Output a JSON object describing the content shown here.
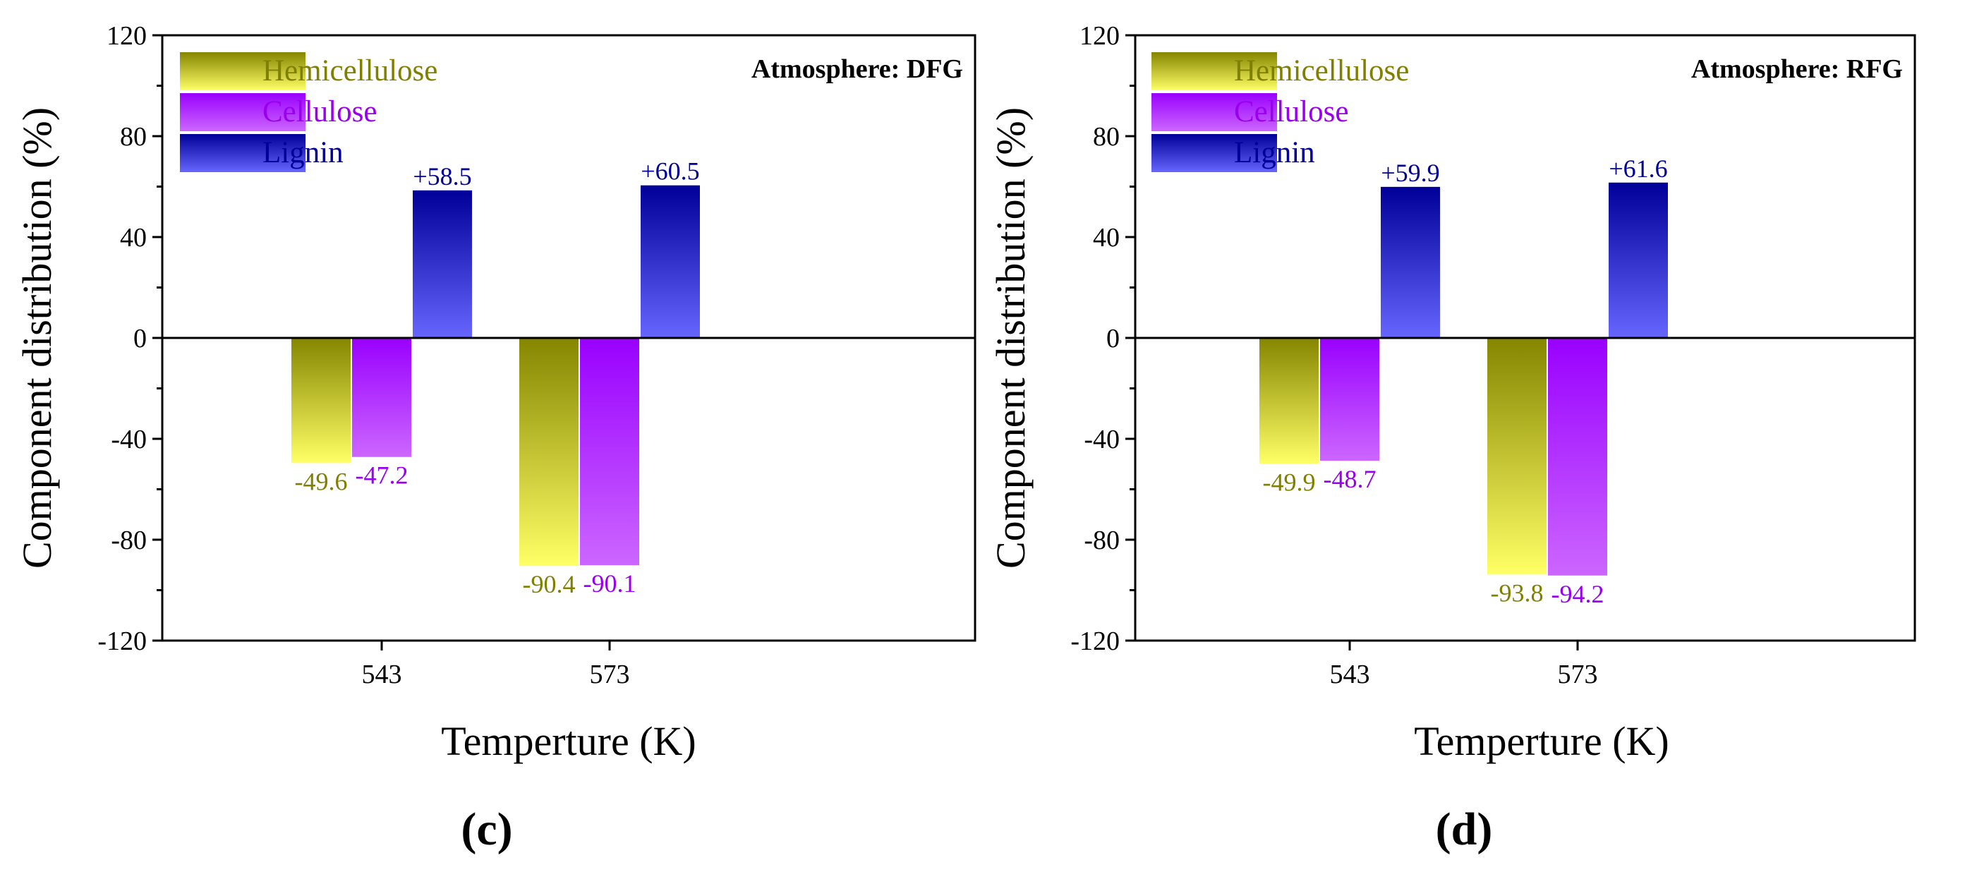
{
  "chart_data": [
    {
      "type": "bar",
      "panel_label": "(c)",
      "title": "Atmosphere: DFG",
      "xlabel": "Temperture (K)",
      "ylabel": "Component distribution (%)",
      "ylim": [
        -120,
        120
      ],
      "yticks": [
        "120",
        "80",
        "40",
        "0",
        "-40",
        "-80",
        "-120"
      ],
      "categories": [
        "543",
        "573"
      ],
      "legend_position": "top-left",
      "series": [
        {
          "name": "Hemicellulose",
          "values": [
            -49.6,
            -90.4
          ],
          "labels": [
            "-49.6",
            "-90.4"
          ]
        },
        {
          "name": "Cellulose",
          "values": [
            -47.2,
            -90.1
          ],
          "labels": [
            "-47.2",
            "-90.1"
          ]
        },
        {
          "name": "Lignin",
          "values": [
            58.5,
            60.5
          ],
          "labels": [
            "+58.5",
            "+60.5"
          ]
        }
      ]
    },
    {
      "type": "bar",
      "panel_label": "(d)",
      "title": "Atmosphere: RFG",
      "xlabel": "Temperture (K)",
      "ylabel": "Component distribution (%)",
      "ylim": [
        -120,
        120
      ],
      "yticks": [
        "120",
        "80",
        "40",
        "0",
        "-40",
        "-80",
        "-120"
      ],
      "categories": [
        "543",
        "573"
      ],
      "legend_position": "top-left",
      "series": [
        {
          "name": "Hemicellulose",
          "values": [
            -49.9,
            -93.8
          ],
          "labels": [
            "-49.9",
            "-93.8"
          ]
        },
        {
          "name": "Cellulose",
          "values": [
            -48.7,
            -94.2
          ],
          "labels": [
            "-48.7",
            "-94.2"
          ]
        },
        {
          "name": "Lignin",
          "values": [
            59.9,
            61.6
          ],
          "labels": [
            "+59.9",
            "+61.6"
          ]
        }
      ]
    }
  ],
  "colors": {
    "hemicellulose_dark": "#858500",
    "hemicellulose_light": "#ffff66",
    "hemicellulose_text": "#808000",
    "cellulose_dark": "#9900ff",
    "cellulose_light": "#cc66ff",
    "cellulose_text": "#9900ee",
    "lignin_dark": "#000099",
    "lignin_light": "#6666ff",
    "lignin_text": "#000099"
  }
}
